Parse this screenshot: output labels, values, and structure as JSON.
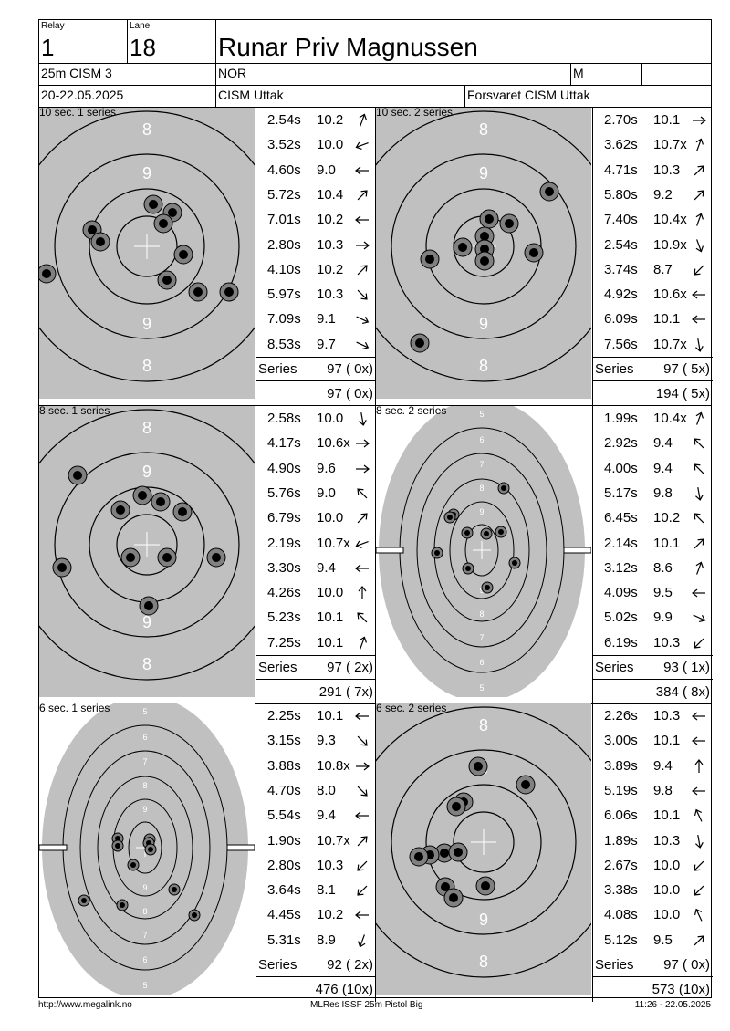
{
  "header": {
    "relay_label": "Relay",
    "relay": "1",
    "lane_label": "Lane",
    "lane": "18",
    "name": "Runar Priv Magnussen",
    "event": "25m CISM 3",
    "nation": "NOR",
    "gender": "M",
    "dates": "20-22.05.2025",
    "competition": "CISM Uttak",
    "club": "Forsvaret CISM Uttak"
  },
  "stages": [
    {
      "title": "10 sec. 1 series",
      "target": "precision",
      "shots": [
        {
          "time": "2.54s",
          "score": "10.2",
          "dir": "up-right-steep"
        },
        {
          "time": "3.52s",
          "score": "10.0",
          "dir": "left-down"
        },
        {
          "time": "4.60s",
          "score": "9.0",
          "dir": "left"
        },
        {
          "time": "5.72s",
          "score": "10.4",
          "dir": "up-right"
        },
        {
          "time": "7.01s",
          "score": "10.2",
          "dir": "left"
        },
        {
          "time": "2.80s",
          "score": "10.3",
          "dir": "right"
        },
        {
          "time": "4.10s",
          "score": "10.2",
          "dir": "up-right"
        },
        {
          "time": "5.97s",
          "score": "10.3",
          "dir": "down-right"
        },
        {
          "time": "7.09s",
          "score": "9.1",
          "dir": "right-down"
        },
        {
          "time": "8.53s",
          "score": "9.7",
          "dir": "right-down"
        }
      ],
      "series_label": "Series",
      "series_total": "97 ( 0x)",
      "running_total": "97 ( 0x)"
    },
    {
      "title": "10 sec. 2 series",
      "target": "precision",
      "shots": [
        {
          "time": "2.70s",
          "score": "10.1",
          "dir": "right"
        },
        {
          "time": "3.62s",
          "score": "10.7x",
          "dir": "up-right-steep"
        },
        {
          "time": "4.71s",
          "score": "10.3",
          "dir": "up-right"
        },
        {
          "time": "5.80s",
          "score": "9.2",
          "dir": "up-right"
        },
        {
          "time": "7.40s",
          "score": "10.4x",
          "dir": "up-right-steep"
        },
        {
          "time": "2.54s",
          "score": "10.9x",
          "dir": "down-right-steep"
        },
        {
          "time": "3.74s",
          "score": "8.7",
          "dir": "down-left"
        },
        {
          "time": "4.92s",
          "score": "10.6x",
          "dir": "left"
        },
        {
          "time": "6.09s",
          "score": "10.1",
          "dir": "left"
        },
        {
          "time": "7.56s",
          "score": "10.7x",
          "dir": "down-steep"
        }
      ],
      "series_label": "Series",
      "series_total": "97 ( 5x)",
      "running_total": "194 ( 5x)"
    },
    {
      "title": "8 sec. 1 series",
      "target": "precision",
      "shots": [
        {
          "time": "2.58s",
          "score": "10.0",
          "dir": "down-steep"
        },
        {
          "time": "4.17s",
          "score": "10.6x",
          "dir": "right"
        },
        {
          "time": "4.90s",
          "score": "9.6",
          "dir": "right"
        },
        {
          "time": "5.76s",
          "score": "9.0",
          "dir": "up-left"
        },
        {
          "time": "6.79s",
          "score": "10.0",
          "dir": "up-right"
        },
        {
          "time": "2.19s",
          "score": "10.7x",
          "dir": "left-down"
        },
        {
          "time": "3.30s",
          "score": "9.4",
          "dir": "left"
        },
        {
          "time": "4.26s",
          "score": "10.0",
          "dir": "up"
        },
        {
          "time": "5.23s",
          "score": "10.1",
          "dir": "up-left"
        },
        {
          "time": "7.25s",
          "score": "10.1",
          "dir": "up-right-steep"
        }
      ],
      "series_label": "Series",
      "series_total": "97 ( 2x)",
      "running_total": "291 ( 7x)"
    },
    {
      "title": "8 sec. 2 series",
      "target": "rapid",
      "shots": [
        {
          "time": "1.99s",
          "score": "10.4x",
          "dir": "up-right-steep"
        },
        {
          "time": "2.92s",
          "score": "9.4",
          "dir": "up-left"
        },
        {
          "time": "4.00s",
          "score": "9.4",
          "dir": "up-left"
        },
        {
          "time": "5.17s",
          "score": "9.8",
          "dir": "down-steep"
        },
        {
          "time": "6.45s",
          "score": "10.2",
          "dir": "up-left"
        },
        {
          "time": "2.14s",
          "score": "10.1",
          "dir": "up-right"
        },
        {
          "time": "3.12s",
          "score": "8.6",
          "dir": "up-right-steep"
        },
        {
          "time": "4.09s",
          "score": "9.5",
          "dir": "left"
        },
        {
          "time": "5.02s",
          "score": "9.9",
          "dir": "right-down"
        },
        {
          "time": "6.19s",
          "score": "10.3",
          "dir": "down-left"
        }
      ],
      "series_label": "Series",
      "series_total": "93 ( 1x)",
      "running_total": "384 ( 8x)"
    },
    {
      "title": "6 sec. 1 series",
      "target": "rapid",
      "shots": [
        {
          "time": "2.25s",
          "score": "10.1",
          "dir": "left"
        },
        {
          "time": "3.15s",
          "score": "9.3",
          "dir": "down-right"
        },
        {
          "time": "3.88s",
          "score": "10.8x",
          "dir": "right"
        },
        {
          "time": "4.70s",
          "score": "8.0",
          "dir": "down-right"
        },
        {
          "time": "5.54s",
          "score": "9.4",
          "dir": "left"
        },
        {
          "time": "1.90s",
          "score": "10.7x",
          "dir": "up-right"
        },
        {
          "time": "2.80s",
          "score": "10.3",
          "dir": "down-left"
        },
        {
          "time": "3.64s",
          "score": "8.1",
          "dir": "down-left"
        },
        {
          "time": "4.45s",
          "score": "10.2",
          "dir": "left"
        },
        {
          "time": "5.31s",
          "score": "8.9",
          "dir": "down-left-steep"
        }
      ],
      "series_label": "Series",
      "series_total": "92 ( 2x)",
      "running_total": "476 (10x)"
    },
    {
      "title": "6 sec. 2 series",
      "target": "precision",
      "shots": [
        {
          "time": "2.26s",
          "score": "10.3",
          "dir": "left"
        },
        {
          "time": "3.00s",
          "score": "10.1",
          "dir": "left"
        },
        {
          "time": "3.89s",
          "score": "9.4",
          "dir": "up"
        },
        {
          "time": "5.19s",
          "score": "9.8",
          "dir": "left"
        },
        {
          "time": "6.06s",
          "score": "10.1",
          "dir": "up-left-steep"
        },
        {
          "time": "1.89s",
          "score": "10.3",
          "dir": "down-steep"
        },
        {
          "time": "2.67s",
          "score": "10.0",
          "dir": "down-left"
        },
        {
          "time": "3.38s",
          "score": "10.0",
          "dir": "down-left"
        },
        {
          "time": "4.08s",
          "score": "10.0",
          "dir": "up-left-steep"
        },
        {
          "time": "5.12s",
          "score": "9.5",
          "dir": "up-right"
        }
      ],
      "series_label": "Series",
      "series_total": "97 ( 0x)",
      "running_total": "573 (10x)"
    }
  ],
  "footer": {
    "left": "http://www.megalink.no",
    "center": "MLRes ISSF 25m Pistol Big",
    "right": "11:26 - 22.05.2025"
  },
  "colors": {
    "target_bg": "#c0c0c0",
    "ring": "#000000",
    "shot_outer": "#808080",
    "shot_inner": "#000000"
  }
}
